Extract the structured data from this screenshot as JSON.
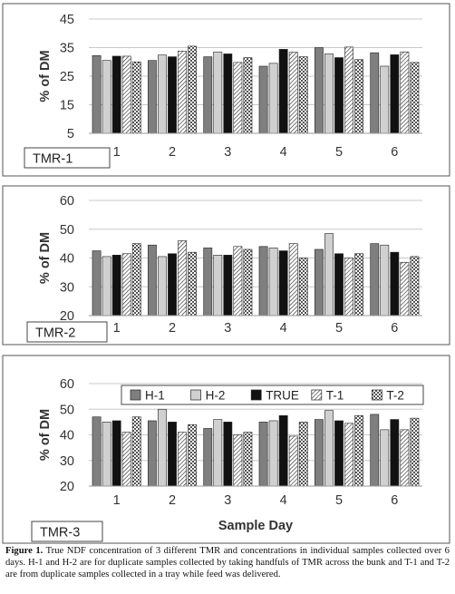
{
  "colors": {
    "H-1": "#7f7f7f",
    "H-2": "#d0d0d0",
    "TRUE": "#111111",
    "T-1": "#ffffff",
    "T-2": "#ffffff",
    "grid": "#c8c8c8",
    "frame": "#555555"
  },
  "caption": {
    "label": "Figure 1.",
    "text": " True NDF concentration of 3 different TMR and concentrations in individual samples collected over 6 days. H-1 and H-2 are for duplicate samples collected by taking handfuls of TMR across the bunk and T-1 and T-2 are from duplicate samples collected in a tray while feed was delivered."
  },
  "chart_data": [
    {
      "type": "bar",
      "panel_label": "TMR-1",
      "ylabel": "% of DM",
      "xlabel": "",
      "ylim": [
        5,
        45
      ],
      "yticks": [
        5,
        15,
        25,
        35,
        45
      ],
      "grid": true,
      "categories": [
        "1",
        "2",
        "3",
        "4",
        "5",
        "6"
      ],
      "series": [
        {
          "name": "H-1",
          "pattern": "solid",
          "values": [
            32.2,
            30.5,
            31.8,
            28.5,
            35.0,
            33.2
          ]
        },
        {
          "name": "H-2",
          "pattern": "solid",
          "values": [
            30.5,
            32.4,
            33.5,
            29.5,
            32.8,
            28.5
          ]
        },
        {
          "name": "TRUE",
          "pattern": "solid",
          "values": [
            32.0,
            31.8,
            32.8,
            34.4,
            31.5,
            32.5
          ]
        },
        {
          "name": "T-1",
          "pattern": "diag",
          "values": [
            32.0,
            33.8,
            29.8,
            33.4,
            35.2,
            33.5
          ]
        },
        {
          "name": "T-2",
          "pattern": "check",
          "values": [
            30.0,
            35.5,
            31.5,
            31.8,
            30.8,
            29.8
          ]
        }
      ]
    },
    {
      "type": "bar",
      "panel_label": "TMR-2",
      "ylabel": "% of DM",
      "xlabel": "",
      "ylim": [
        20,
        60
      ],
      "yticks": [
        20,
        30,
        40,
        50,
        60
      ],
      "grid": true,
      "categories": [
        "1",
        "2",
        "3",
        "4",
        "5",
        "6"
      ],
      "series": [
        {
          "name": "H-1",
          "pattern": "solid",
          "values": [
            42.5,
            44.5,
            43.5,
            44.0,
            43.0,
            45.0
          ]
        },
        {
          "name": "H-2",
          "pattern": "solid",
          "values": [
            40.5,
            40.5,
            41.0,
            43.5,
            48.5,
            44.5
          ]
        },
        {
          "name": "TRUE",
          "pattern": "solid",
          "values": [
            41.0,
            41.5,
            41.0,
            42.5,
            41.5,
            42.0
          ]
        },
        {
          "name": "T-1",
          "pattern": "diag",
          "values": [
            41.5,
            46.0,
            44.0,
            45.0,
            40.0,
            38.5
          ]
        },
        {
          "name": "T-2",
          "pattern": "check",
          "values": [
            45.0,
            42.0,
            43.0,
            40.0,
            41.5,
            40.5
          ]
        }
      ]
    },
    {
      "type": "bar",
      "panel_label": "TMR-3",
      "ylabel": "% of DM",
      "xlabel": "Sample Day",
      "ylim": [
        20,
        60
      ],
      "yticks": [
        20,
        30,
        40,
        50,
        60
      ],
      "grid": true,
      "legend": "top",
      "categories": [
        "1",
        "2",
        "3",
        "4",
        "5",
        "6"
      ],
      "series": [
        {
          "name": "H-1",
          "pattern": "solid",
          "values": [
            47.0,
            45.5,
            42.5,
            45.0,
            46.0,
            48.0
          ]
        },
        {
          "name": "H-2",
          "pattern": "solid",
          "values": [
            45.0,
            50.0,
            46.0,
            45.5,
            49.5,
            42.0
          ]
        },
        {
          "name": "TRUE",
          "pattern": "solid",
          "values": [
            45.5,
            45.0,
            45.0,
            47.5,
            45.5,
            46.0
          ]
        },
        {
          "name": "T-1",
          "pattern": "diag",
          "values": [
            41.0,
            41.0,
            40.0,
            39.5,
            44.5,
            42.0
          ]
        },
        {
          "name": "T-2",
          "pattern": "check",
          "values": [
            47.0,
            44.0,
            41.0,
            45.0,
            47.5,
            46.5
          ]
        }
      ]
    }
  ]
}
